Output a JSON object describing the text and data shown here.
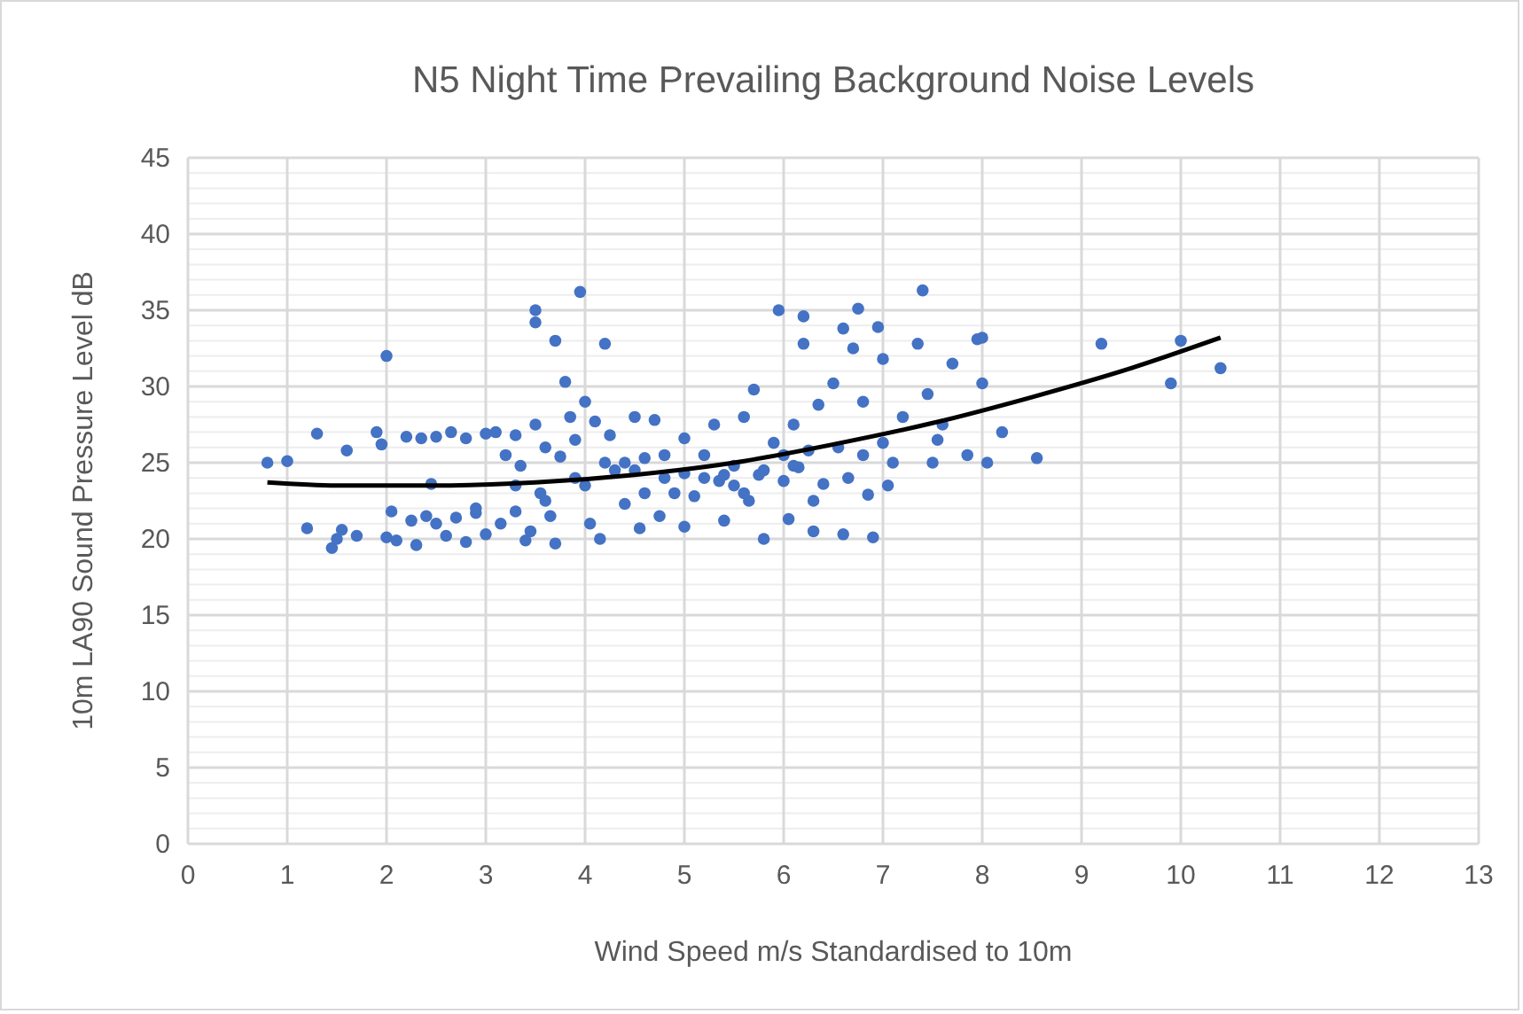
{
  "chart_data": {
    "type": "scatter",
    "title": "N5 Night Time Prevailing Background Noise Levels",
    "xlabel": "Wind Speed m/s Standardised to 10m",
    "ylabel": "10m LA90 Sound Pressure Level dB",
    "xlim": [
      0,
      13
    ],
    "xticks": [
      0,
      1,
      2,
      3,
      4,
      5,
      6,
      7,
      8,
      9,
      10,
      11,
      12,
      13
    ],
    "ylim": [
      0,
      45
    ],
    "yticks": [
      0,
      {
        "value": 1,
        "label": null
      },
      {
        "value": 2,
        "label": null
      },
      {
        "value": 3,
        "label": null
      },
      {
        "value": 4,
        "label": null
      },
      5,
      {
        "value": 6,
        "label": null
      },
      {
        "value": 7,
        "label": null
      },
      {
        "value": 8,
        "label": null
      },
      {
        "value": 9,
        "label": null
      },
      10,
      {
        "value": 11,
        "label": null
      },
      {
        "value": 12,
        "label": null
      },
      {
        "value": 13,
        "label": null
      },
      {
        "value": 14,
        "label": null
      },
      15,
      {
        "value": 16,
        "label": null
      },
      {
        "value": 17,
        "label": null
      },
      {
        "value": 18,
        "label": null
      },
      {
        "value": 19,
        "label": null
      },
      20,
      {
        "value": 21,
        "label": null
      },
      {
        "value": 22,
        "label": null
      },
      {
        "value": 23,
        "label": null
      },
      {
        "value": 24,
        "label": null
      },
      25,
      {
        "value": 26,
        "label": null
      },
      {
        "value": 27,
        "label": null
      },
      {
        "value": 28,
        "label": null
      },
      {
        "value": 29,
        "label": null
      },
      30,
      {
        "value": 31,
        "label": null
      },
      {
        "value": 32,
        "label": null
      },
      {
        "value": 33,
        "label": null
      },
      {
        "value": 34,
        "label": null
      },
      35,
      {
        "value": 36,
        "label": null
      },
      {
        "value": 37,
        "label": null
      },
      {
        "value": 38,
        "label": null
      },
      {
        "value": 39,
        "label": null
      },
      40,
      {
        "value": 41,
        "label": null
      },
      {
        "value": 42,
        "label": null
      },
      {
        "value": 43,
        "label": null
      },
      {
        "value": 44,
        "label": null
      },
      45
    ],
    "grid": true,
    "marker": "circle",
    "series": [
      {
        "color": "#4472c4",
        "x": [
          0.8,
          1.0,
          1.2,
          1.3,
          1.45,
          1.5,
          1.55,
          1.6,
          1.7,
          1.9,
          1.95,
          2.0,
          2.0,
          2.05,
          2.1,
          2.2,
          2.25,
          2.3,
          2.35,
          2.4,
          2.45,
          2.5,
          2.5,
          2.6,
          2.65,
          2.7,
          2.8,
          2.8,
          2.9,
          3.0,
          3.0,
          3.1,
          3.15,
          3.2,
          3.3,
          3.3,
          3.35,
          3.4,
          3.45,
          3.5,
          3.5,
          3.5,
          3.55,
          3.6,
          3.65,
          3.7,
          3.7,
          3.75,
          3.8,
          3.85,
          3.9,
          3.95,
          4.0,
          4.0,
          4.05,
          4.1,
          4.15,
          4.2,
          4.25,
          4.3,
          4.4,
          4.5,
          4.55,
          4.6,
          4.7,
          4.75,
          4.8,
          4.9,
          5.0,
          5.0,
          5.1,
          5.2,
          5.3,
          5.35,
          5.4,
          5.5,
          5.6,
          5.65,
          5.7,
          5.75,
          5.8,
          5.9,
          5.95,
          6.0,
          6.05,
          6.1,
          6.15,
          6.2,
          6.2,
          6.25,
          6.3,
          6.35,
          6.4,
          6.5,
          6.55,
          6.6,
          6.6,
          6.65,
          6.7,
          6.75,
          6.8,
          6.8,
          6.85,
          6.9,
          6.95,
          7.0,
          7.0,
          7.05,
          7.1,
          7.2,
          7.35,
          7.4,
          7.45,
          7.5,
          7.55,
          7.6,
          7.7,
          7.85,
          7.95,
          8.0,
          8.0,
          8.05,
          8.2,
          8.55,
          9.2,
          9.9,
          10.0,
          10.4,
          4.5,
          5.2,
          5.5,
          4.8,
          5.8,
          6.0,
          3.9,
          4.2,
          3.3,
          2.9,
          4.6,
          5.4,
          6.3,
          3.6,
          4.4,
          5.0,
          5.6,
          6.1
        ],
        "values": [
          25.0,
          25.1,
          20.7,
          26.9,
          19.4,
          20.0,
          20.6,
          25.8,
          20.2,
          27.0,
          26.2,
          32.0,
          20.1,
          21.8,
          19.9,
          26.7,
          21.2,
          19.6,
          26.6,
          21.5,
          23.6,
          26.7,
          21.0,
          20.2,
          27.0,
          21.4,
          26.6,
          19.8,
          21.7,
          26.9,
          20.3,
          27.0,
          21.0,
          25.5,
          26.8,
          21.8,
          24.8,
          19.9,
          20.5,
          35.0,
          34.2,
          27.5,
          23.0,
          22.5,
          21.5,
          33.0,
          19.7,
          25.4,
          30.3,
          28.0,
          26.5,
          36.2,
          29.0,
          23.5,
          21.0,
          27.7,
          20.0,
          32.8,
          26.8,
          24.5,
          22.3,
          28.0,
          20.7,
          25.3,
          27.8,
          21.5,
          24.0,
          23.0,
          26.6,
          20.8,
          22.8,
          25.5,
          27.5,
          23.8,
          21.2,
          24.8,
          28.0,
          22.5,
          29.8,
          24.2,
          20.0,
          26.3,
          35.0,
          23.8,
          21.3,
          27.5,
          24.7,
          34.6,
          32.8,
          25.8,
          20.5,
          28.8,
          23.6,
          30.2,
          26.0,
          33.8,
          20.3,
          24.0,
          32.5,
          35.1,
          29.0,
          25.5,
          22.9,
          20.1,
          33.9,
          31.8,
          26.3,
          23.5,
          25.0,
          28.0,
          32.8,
          36.3,
          29.5,
          25.0,
          26.5,
          27.5,
          31.5,
          25.5,
          33.1,
          33.2,
          30.2,
          25.0,
          27.0,
          25.3,
          32.8,
          30.2,
          33.0,
          31.2,
          24.5,
          24.0,
          23.5,
          25.5,
          24.5,
          25.5,
          24.0,
          25.0,
          23.5,
          22.0,
          23.0,
          24.2,
          22.5,
          26.0,
          25.0,
          24.3,
          23.0,
          24.8
        ]
      },
      {
        "type": "line",
        "color": "#000000",
        "marker": "none",
        "x": [
          0.8,
          1.5,
          2.5,
          3.5,
          4.5,
          5.5,
          6.5,
          7.5,
          8.5,
          9.5,
          10.4
        ],
        "values": [
          23.7,
          23.5,
          23.5,
          23.7,
          24.2,
          25.0,
          26.2,
          27.6,
          29.3,
          31.2,
          33.2
        ]
      }
    ]
  }
}
